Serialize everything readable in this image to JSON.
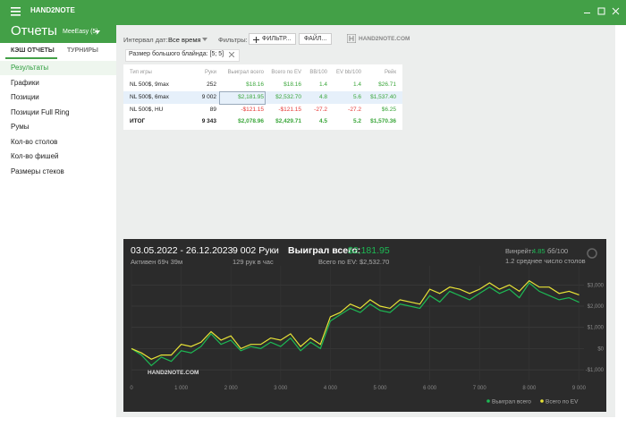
{
  "app": {
    "brand": "HAND2NOTE"
  },
  "sidebar": {
    "title": "Отчеты",
    "profile": "MeeEasy (5)",
    "tabs": [
      "КЭШ ОТЧЕТЫ",
      "ТУРНИРЫ"
    ],
    "items": [
      "Результаты",
      "Графики",
      "Позиции",
      "Позиции Full Ring",
      "Румы",
      "Кол-во столов",
      "Кол-во фишей",
      "Размеры стеков"
    ]
  },
  "toolbar": {
    "date_label": "Интервал дат:",
    "date_value": "Все время",
    "filters_label": "Фильтры:",
    "filter_button": "ФИЛЬТР...",
    "file_button": "ФАЙЛ...",
    "logo": "HAND2NOTE.COM"
  },
  "filter_chip": "Размер большого блайнда: [5; 5]",
  "table": {
    "columns": [
      "Тип игры",
      "Руки",
      "Выиграл всего",
      "Всего по EV",
      "BB/100",
      "EV bb/100",
      "Рейк"
    ],
    "rows": [
      [
        "NL 500$, 9max",
        "252",
        "$18.16",
        "$18.16",
        "1.4",
        "1.4",
        "$26.71"
      ],
      [
        "NL 500$, 6max",
        "9 002",
        "$2,181.95",
        "$2,532.70",
        "4.8",
        "5.6",
        "$1,537.40"
      ],
      [
        "NL 500$, HU",
        "89",
        "-$121.15",
        "-$121.15",
        "-27.2",
        "-27.2",
        "$6.25"
      ],
      [
        "ИТОГ",
        "9 343",
        "$2,078.96",
        "$2,429.71",
        "4.5",
        "5.2",
        "$1,570.36"
      ]
    ]
  },
  "chart_panel": {
    "period": "03.05.2022 - 26.12.2023",
    "active": "Активен 69ч 39м",
    "hands": "9 002 Руки",
    "hands_per_hour": "129 рук в час",
    "won_label": "Выиграл всего:",
    "won_value": "$2,181.95",
    "ev_text": "Всего по EV: $2,532.70",
    "winrate_label": "Винрейт:",
    "winrate_value": "4.85",
    "winrate_unit": "бб/100",
    "tables": "1.2 среднее число столов",
    "watermark": "HAND2NOTE.COM",
    "chart": {
      "type": "line",
      "x": [
        0,
        200,
        400,
        600,
        800,
        1000,
        1200,
        1400,
        1600,
        1800,
        2000,
        2200,
        2400,
        2600,
        2800,
        3000,
        3200,
        3400,
        3600,
        3800,
        4000,
        4200,
        4400,
        4600,
        4800,
        5000,
        5200,
        5400,
        5600,
        5800,
        6000,
        6200,
        6400,
        6600,
        6800,
        7000,
        7200,
        7400,
        7600,
        7800,
        8000,
        8200,
        8400,
        8600,
        8800,
        9002
      ],
      "series": [
        {
          "name": "Выиграл всего",
          "color": "#1db954",
          "values": [
            0,
            -300,
            -800,
            -400,
            -600,
            -100,
            -200,
            100,
            700,
            200,
            400,
            -100,
            100,
            0,
            300,
            100,
            500,
            -100,
            300,
            0,
            1300,
            1600,
            1900,
            1700,
            2100,
            1800,
            1700,
            2100,
            2000,
            1900,
            2500,
            2200,
            2700,
            2500,
            2300,
            2600,
            2900,
            2600,
            2800,
            2400,
            3100,
            2700,
            2500,
            2300,
            2400,
            2182
          ]
        },
        {
          "name": "Всего по EV",
          "color": "#e8e337",
          "values": [
            0,
            -200,
            -500,
            -300,
            -300,
            200,
            100,
            300,
            800,
            400,
            600,
            0,
            200,
            200,
            500,
            400,
            700,
            100,
            500,
            200,
            1500,
            1700,
            2100,
            1900,
            2300,
            2000,
            1900,
            2300,
            2200,
            2100,
            2800,
            2600,
            2900,
            2800,
            2600,
            2800,
            3100,
            2800,
            3000,
            2700,
            3200,
            2900,
            2900,
            2600,
            2700,
            2533
          ]
        }
      ],
      "xlim": [
        0,
        9100
      ],
      "ylim": [
        -1500,
        3900
      ],
      "xticks": [
        0,
        {
          "value": 1000,
          "label": "1 000"
        },
        {
          "value": 2000,
          "label": "2 000"
        },
        {
          "value": 3000,
          "label": "3 000"
        },
        {
          "value": 4000,
          "label": "4 000"
        },
        {
          "value": 5000,
          "label": "5 000"
        },
        {
          "value": 6000,
          "label": "6 000"
        },
        {
          "value": 7000,
          "label": "7 000"
        },
        {
          "value": 8000,
          "label": "8 000"
        },
        {
          "value": 9000,
          "label": "9 000"
        }
      ],
      "yticks": [
        {
          "value": -1000,
          "label": "-$1,000"
        },
        {
          "value": 0,
          "label": "$0"
        },
        {
          "value": 1000,
          "label": "$1,000"
        },
        {
          "value": 2000,
          "label": "$2,000"
        },
        {
          "value": 3000,
          "label": "$3,000"
        }
      ],
      "grid": true
    }
  }
}
